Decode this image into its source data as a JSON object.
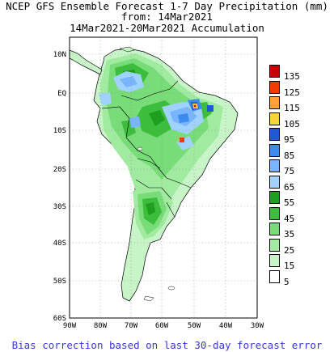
{
  "header": {
    "line1": "NCEP GFS Ensemble Forecast 1-7 Day Precipitation (mm)",
    "line2": "from: 14Mar2021",
    "line3": "14Mar2021-20Mar2021 Accumulation"
  },
  "map": {
    "lat_labels": [
      "10N",
      "EQ",
      "10S",
      "20S",
      "30S",
      "40S",
      "50S",
      "60S"
    ],
    "lon_labels": [
      "90W",
      "80W",
      "70W",
      "60W",
      "50W",
      "40W",
      "30W"
    ],
    "grid": "dotted"
  },
  "legend": {
    "items": [
      {
        "label": "135",
        "color": "#c80000"
      },
      {
        "label": "125",
        "color": "#f03c00"
      },
      {
        "label": "115",
        "color": "#ffa03c"
      },
      {
        "label": "105",
        "color": "#fad23c"
      },
      {
        "label": "95",
        "color": "#1e5ad2"
      },
      {
        "label": "85",
        "color": "#3c8cf0"
      },
      {
        "label": "75",
        "color": "#78b4ff"
      },
      {
        "label": "65",
        "color": "#a0d2ff"
      },
      {
        "label": "55",
        "color": "#1ea01e"
      },
      {
        "label": "45",
        "color": "#3cbe3c"
      },
      {
        "label": "35",
        "color": "#78dc78"
      },
      {
        "label": "25",
        "color": "#a0eba0"
      },
      {
        "label": "15",
        "color": "#c8f5c8"
      },
      {
        "label": "5",
        "color": "#ffffff"
      }
    ]
  },
  "footer": {
    "note": "Bias correction based on last 30-day forecast error"
  }
}
